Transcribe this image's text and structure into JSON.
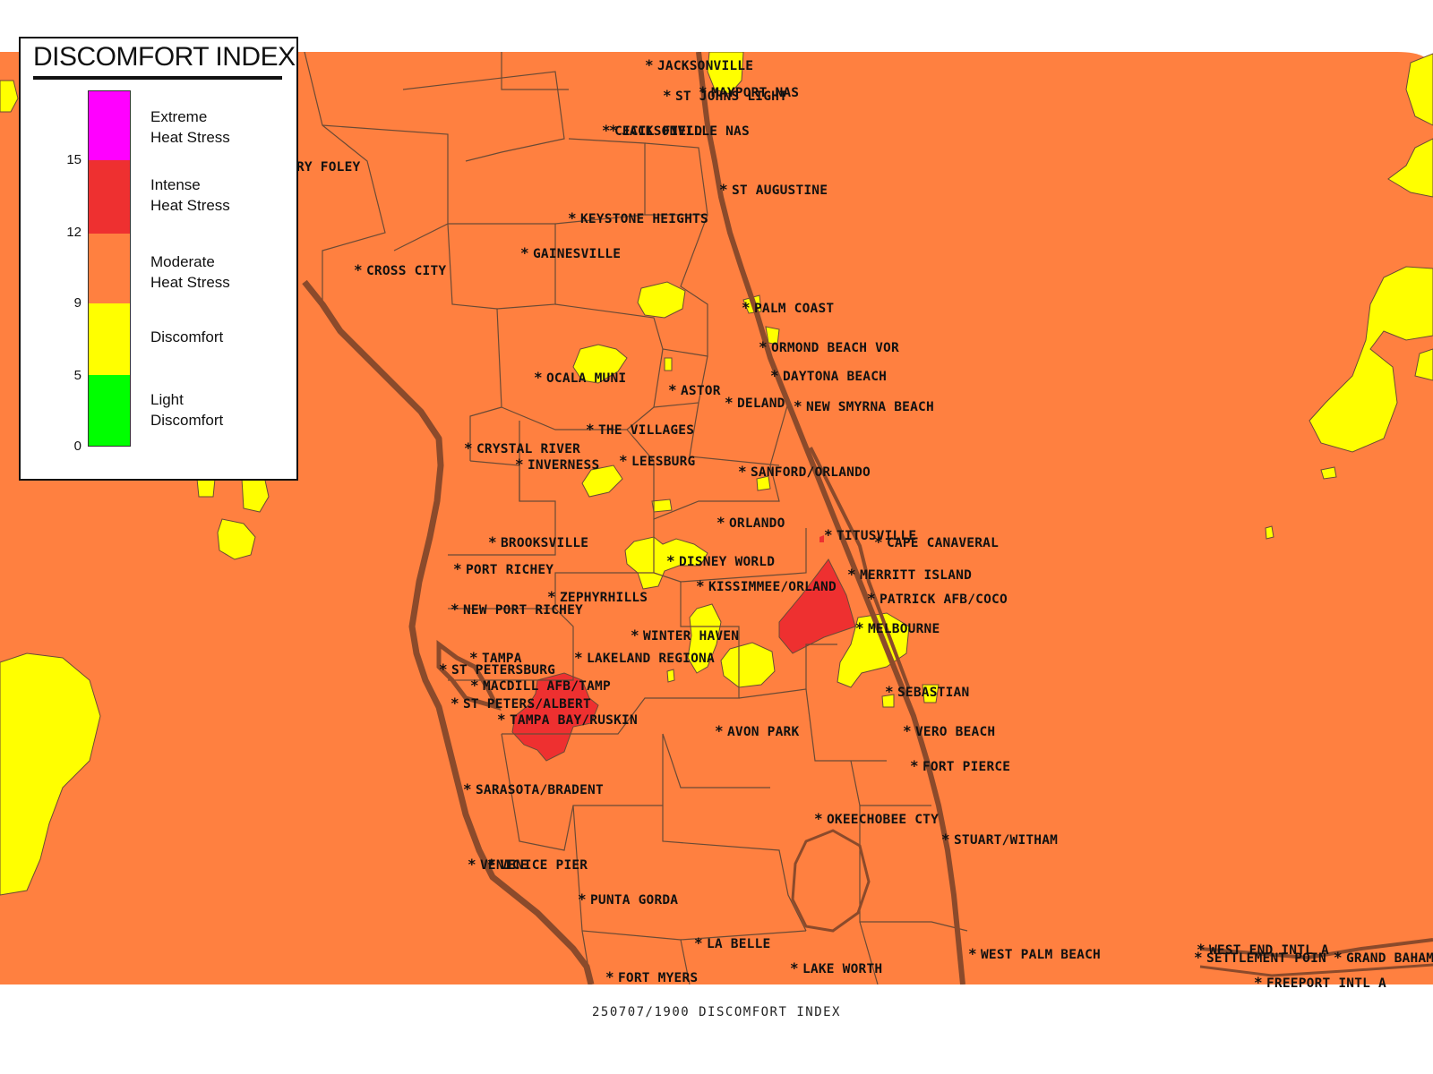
{
  "legend": {
    "title": "DISCOMFORT INDEX",
    "categories": [
      {
        "line1": "Extreme",
        "line2": "Heat Stress",
        "color": "#ff00ff"
      },
      {
        "line1": "Intense",
        "line2": "Heat Stress",
        "color": "#ee3030"
      },
      {
        "line1": "Moderate",
        "line2": "Heat Stress",
        "color": "#ff8040"
      },
      {
        "line1": "Discomfort",
        "line2": "",
        "color": "#ffff00"
      },
      {
        "line1": "Light",
        "line2": "Discomfort",
        "color": "#00ff00"
      }
    ],
    "ticks": [
      "15",
      "12",
      "9",
      "5",
      "0"
    ]
  },
  "colors": {
    "land": "#ff8040",
    "coast": "#8b4a2b",
    "county_lines": "#6b4a35",
    "discomfort": "#ffff00",
    "intense": "#ee3030"
  },
  "cities": [
    {
      "name": "JACKSONVILLE"
    },
    {
      "name": "ST JOHNS LIGHT"
    },
    {
      "name": "MAYPORT NAS"
    },
    {
      "name": "JACKSONVILLE NAS"
    },
    {
      "name": "CECIL FIELD"
    },
    {
      "name": "ST AUGUSTINE"
    },
    {
      "name": "KEYSTONE HEIGHTS"
    },
    {
      "name": "GAINESVILLE"
    },
    {
      "name": "CROSS CITY"
    },
    {
      "name": "RY FOLEY"
    },
    {
      "name": "PALM COAST"
    },
    {
      "name": "ORMOND BEACH VOR"
    },
    {
      "name": "DAYTONA BEACH"
    },
    {
      "name": "OCALA MUNI"
    },
    {
      "name": "ASTOR"
    },
    {
      "name": "DELAND"
    },
    {
      "name": "NEW SMYRNA BEACH"
    },
    {
      "name": "THE VILLAGES"
    },
    {
      "name": "CRYSTAL RIVER"
    },
    {
      "name": "INVERNESS"
    },
    {
      "name": "LEESBURG"
    },
    {
      "name": "SANFORD/ORLANDO"
    },
    {
      "name": "ORLANDO"
    },
    {
      "name": "TITUSVILLE"
    },
    {
      "name": "CAPE CANAVERAL"
    },
    {
      "name": "BROOKSVILLE"
    },
    {
      "name": "DISNEY WORLD"
    },
    {
      "name": "PORT RICHEY"
    },
    {
      "name": "KISSIMMEE/ORLAND"
    },
    {
      "name": "MERRITT ISLAND"
    },
    {
      "name": "ZEPHYRHILLS"
    },
    {
      "name": "PATRICK AFB/COCO"
    },
    {
      "name": "NEW PORT RICHEY"
    },
    {
      "name": "MELBOURNE"
    },
    {
      "name": "WINTER HAVEN"
    },
    {
      "name": "TAMPA"
    },
    {
      "name": "LAKELAND REGIONA"
    },
    {
      "name": "ST PETERSBURG"
    },
    {
      "name": "MACDILL AFB/TAMP"
    },
    {
      "name": "ST PETERS/ALBERT"
    },
    {
      "name": "SEBASTIAN"
    },
    {
      "name": "TAMPA BAY/RUSKIN"
    },
    {
      "name": "AVON PARK"
    },
    {
      "name": "VERO BEACH"
    },
    {
      "name": "FORT PIERCE"
    },
    {
      "name": "SARASOTA/BRADENT"
    },
    {
      "name": "OKEECHOBEE CTY"
    },
    {
      "name": "STUART/WITHAM"
    },
    {
      "name": "VENICE"
    },
    {
      "name": "VENICE PIER"
    },
    {
      "name": "PUNTA GORDA"
    },
    {
      "name": "LA BELLE"
    },
    {
      "name": "WEST PALM BEACH"
    },
    {
      "name": "WEST END INTL A"
    },
    {
      "name": "SETTLEMENT POIN"
    },
    {
      "name": "GRAND BAHAM"
    },
    {
      "name": "LAKE WORTH"
    },
    {
      "name": "FORT MYERS"
    },
    {
      "name": "FREEPORT INTL A"
    }
  ],
  "footer": "250707/1900 DISCOMFORT INDEX"
}
